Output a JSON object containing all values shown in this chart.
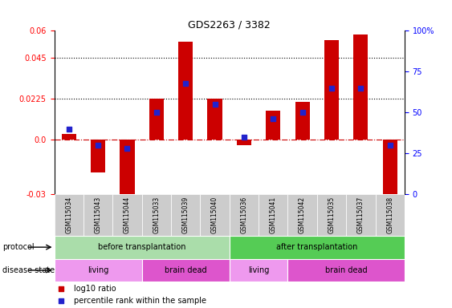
{
  "title": "GDS2263 / 3382",
  "samples": [
    "GSM115034",
    "GSM115043",
    "GSM115044",
    "GSM115033",
    "GSM115039",
    "GSM115040",
    "GSM115036",
    "GSM115041",
    "GSM115042",
    "GSM115035",
    "GSM115037",
    "GSM115038"
  ],
  "log10_ratio": [
    0.003,
    -0.018,
    -0.032,
    0.0225,
    0.054,
    0.0225,
    -0.003,
    0.016,
    0.021,
    0.055,
    0.058,
    -0.038
  ],
  "percentile_rank": [
    40,
    30,
    28,
    50,
    68,
    55,
    35,
    46,
    50,
    65,
    65,
    30
  ],
  "ylim_left": [
    -0.03,
    0.06
  ],
  "ylim_right": [
    0,
    100
  ],
  "yticks_left": [
    -0.03,
    0.0,
    0.0225,
    0.045,
    0.06
  ],
  "yticks_right": [
    0,
    25,
    50,
    75,
    100
  ],
  "hlines": [
    0.0225,
    0.045
  ],
  "bar_color": "#cc0000",
  "dot_color": "#2222cc",
  "zero_line_color": "#cc0000",
  "protocol_groups": [
    {
      "label": "before transplantation",
      "start": 0,
      "end": 6,
      "color": "#aaddaa"
    },
    {
      "label": "after transplantation",
      "start": 6,
      "end": 12,
      "color": "#55cc55"
    }
  ],
  "disease_groups": [
    {
      "label": "living",
      "start": 0,
      "end": 3,
      "color": "#ee99ee"
    },
    {
      "label": "brain dead",
      "start": 3,
      "end": 6,
      "color": "#dd55cc"
    },
    {
      "label": "living",
      "start": 6,
      "end": 8,
      "color": "#ee99ee"
    },
    {
      "label": "brain dead",
      "start": 8,
      "end": 12,
      "color": "#dd55cc"
    }
  ],
  "legend_items": [
    {
      "label": "log10 ratio",
      "color": "#cc0000"
    },
    {
      "label": "percentile rank within the sample",
      "color": "#2222cc"
    }
  ],
  "bg_color": "#ffffff",
  "plot_bg_color": "#ffffff",
  "bar_width": 0.5
}
